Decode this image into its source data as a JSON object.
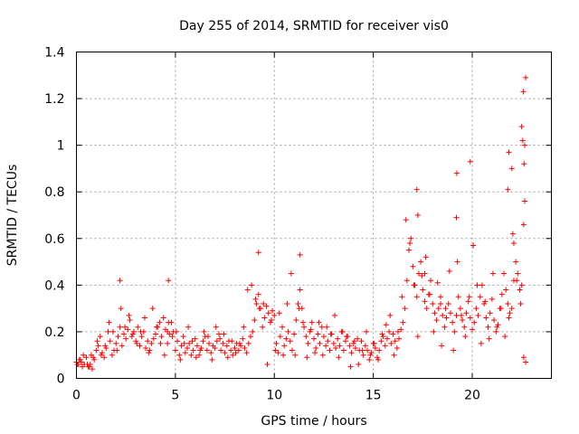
{
  "chart_data": {
    "type": "scatter",
    "title": "Day 255 of 2014, SRMTID for receiver vis0",
    "xlabel": "GPS time / hours",
    "ylabel": "SRMTID / TECUs",
    "xlim": [
      0,
      24
    ],
    "ylim": [
      0,
      1.4
    ],
    "grid": true,
    "marker": "+",
    "marker_color": "#ff0000",
    "x_ticks": [
      {
        "value": 0,
        "label": "0"
      },
      {
        "value": 5,
        "label": "5"
      },
      {
        "value": 10,
        "label": "10"
      },
      {
        "value": 15,
        "label": "15"
      },
      {
        "value": 20,
        "label": "20"
      }
    ],
    "y_ticks": [
      {
        "value": 0,
        "label": "0"
      },
      {
        "value": 0.2,
        "label": "0.2"
      },
      {
        "value": 0.4,
        "label": "0.4"
      },
      {
        "value": 0.6,
        "label": "0.6"
      },
      {
        "value": 0.8,
        "label": "0.8"
      },
      {
        "value": 1.0,
        "label": "1"
      },
      {
        "value": 1.2,
        "label": "1.2"
      },
      {
        "value": 1.4,
        "label": "1.4"
      }
    ],
    "series": [
      {
        "name": "SRMTID",
        "x": [
          0.0,
          0.1,
          0.2,
          0.3,
          0.4,
          0.5,
          0.6,
          0.7,
          0.8,
          0.9,
          1.0,
          1.1,
          1.2,
          1.3,
          1.4,
          1.5,
          1.6,
          1.7,
          1.8,
          1.9,
          2.0,
          2.1,
          2.2,
          2.3,
          2.4,
          2.5,
          2.6,
          2.7,
          2.8,
          2.9,
          3.0,
          3.1,
          3.2,
          3.3,
          3.4,
          3.5,
          3.6,
          3.7,
          3.8,
          3.9,
          4.0,
          4.1,
          4.2,
          4.3,
          4.4,
          4.5,
          4.6,
          4.7,
          4.8,
          4.9,
          5.0,
          5.1,
          5.2,
          5.3,
          5.4,
          5.5,
          5.6,
          5.7,
          5.8,
          5.9,
          6.0,
          6.1,
          6.2,
          6.3,
          6.4,
          6.5,
          6.6,
          6.7,
          6.8,
          6.9,
          7.0,
          7.1,
          7.2,
          7.3,
          7.4,
          7.5,
          7.6,
          7.7,
          7.8,
          7.9,
          8.0,
          8.1,
          8.2,
          8.3,
          8.4,
          8.5,
          8.6,
          8.7,
          8.8,
          8.9,
          9.0,
          9.1,
          9.2,
          9.3,
          9.4,
          9.5,
          9.6,
          9.7,
          9.8,
          9.9,
          10.0,
          10.1,
          10.2,
          10.3,
          10.4,
          10.5,
          10.6,
          10.7,
          10.8,
          10.9,
          11.0,
          11.1,
          11.2,
          11.3,
          11.4,
          11.5,
          11.6,
          11.7,
          11.8,
          11.9,
          12.0,
          12.1,
          12.2,
          12.3,
          12.4,
          12.5,
          12.6,
          12.7,
          12.8,
          12.9,
          13.0,
          13.1,
          13.2,
          13.3,
          13.4,
          13.5,
          13.6,
          13.7,
          13.8,
          13.9,
          14.0,
          14.1,
          14.2,
          14.3,
          14.4,
          14.5,
          14.6,
          14.7,
          14.8,
          14.9,
          15.0,
          15.1,
          15.2,
          15.3,
          15.4,
          15.5,
          15.6,
          15.7,
          15.8,
          15.9,
          16.0,
          16.1,
          16.2,
          16.3,
          16.4,
          16.5,
          16.6,
          16.7,
          16.8,
          16.9,
          17.0,
          17.1,
          17.2,
          17.3,
          17.4,
          17.5,
          17.6,
          17.7,
          17.8,
          17.9,
          18.0,
          18.1,
          18.2,
          18.3,
          18.4,
          18.5,
          18.6,
          18.7,
          18.8,
          18.9,
          19.0,
          19.1,
          19.2,
          19.3,
          19.4,
          19.5,
          19.6,
          19.7,
          19.8,
          19.9,
          20.0,
          20.1,
          20.2,
          20.3,
          20.4,
          20.5,
          20.6,
          20.7,
          20.8,
          20.9,
          21.0,
          21.1,
          21.2,
          21.3,
          21.4,
          21.5,
          21.6,
          21.7,
          21.8,
          21.9,
          22.0,
          22.1,
          22.2,
          22.3,
          22.4,
          22.5,
          22.6,
          22.7,
          0.05,
          0.15,
          0.25,
          0.35,
          0.55,
          0.65,
          0.75,
          0.85,
          1.05,
          1.25,
          1.45,
          1.65,
          1.85,
          2.05,
          2.25,
          2.45,
          2.65,
          2.85,
          3.05,
          3.25,
          3.45,
          3.65,
          3.85,
          4.05,
          4.25,
          4.45,
          4.65,
          4.85,
          5.05,
          5.25,
          5.45,
          5.65,
          5.85,
          6.05,
          6.25,
          6.45,
          6.65,
          6.85,
          7.05,
          7.25,
          7.45,
          7.65,
          7.85,
          8.05,
          8.25,
          8.45,
          8.65,
          8.85,
          9.05,
          9.25,
          9.45,
          9.65,
          9.85,
          10.05,
          10.25,
          10.45,
          10.65,
          10.85,
          11.05,
          11.25,
          11.45,
          11.65,
          11.85,
          12.05,
          12.25,
          12.45,
          12.65,
          12.85,
          13.05,
          13.25,
          13.45,
          13.65,
          13.85,
          14.05,
          14.25,
          14.45,
          14.65,
          14.85,
          15.05,
          15.25,
          15.45,
          15.65,
          15.85,
          16.05,
          16.25,
          16.45,
          16.65,
          16.85,
          17.05,
          17.25,
          17.45,
          17.65,
          17.85,
          18.05,
          18.25,
          18.45,
          18.65,
          18.85,
          19.05,
          19.25,
          19.45,
          19.65,
          19.85,
          20.05,
          20.25,
          20.45,
          20.65,
          20.85,
          21.05,
          21.25,
          21.45,
          21.65,
          21.85,
          22.05,
          22.25,
          22.45,
          22.65,
          2.2,
          4.6,
          4.65,
          9.2,
          11.3,
          17.2,
          17.25,
          19.2,
          19.22,
          21.8,
          21.85,
          22.0,
          22.1,
          22.5,
          22.55,
          22.6,
          22.62,
          22.65,
          22.7,
          22.58,
          19.9,
          17.6,
          18.4
        ],
        "y": [
          0.07,
          0.06,
          0.08,
          0.05,
          0.06,
          0.09,
          0.05,
          0.06,
          0.04,
          0.08,
          0.12,
          0.14,
          0.18,
          0.11,
          0.09,
          0.13,
          0.2,
          0.16,
          0.1,
          0.12,
          0.15,
          0.18,
          0.22,
          0.14,
          0.19,
          0.17,
          0.21,
          0.25,
          0.18,
          0.2,
          0.16,
          0.22,
          0.14,
          0.18,
          0.2,
          0.13,
          0.16,
          0.12,
          0.15,
          0.17,
          0.19,
          0.22,
          0.24,
          0.18,
          0.26,
          0.21,
          0.15,
          0.19,
          0.24,
          0.2,
          0.12,
          0.16,
          0.1,
          0.14,
          0.18,
          0.11,
          0.13,
          0.15,
          0.1,
          0.12,
          0.17,
          0.14,
          0.1,
          0.13,
          0.16,
          0.18,
          0.12,
          0.15,
          0.11,
          0.14,
          0.13,
          0.16,
          0.19,
          0.12,
          0.15,
          0.11,
          0.14,
          0.16,
          0.12,
          0.1,
          0.13,
          0.15,
          0.12,
          0.14,
          0.17,
          0.13,
          0.11,
          0.15,
          0.18,
          0.2,
          0.25,
          0.32,
          0.36,
          0.3,
          0.22,
          0.26,
          0.31,
          0.28,
          0.24,
          0.29,
          0.27,
          0.15,
          0.11,
          0.18,
          0.22,
          0.14,
          0.17,
          0.2,
          0.16,
          0.12,
          0.19,
          0.25,
          0.32,
          0.38,
          0.3,
          0.22,
          0.18,
          0.15,
          0.2,
          0.24,
          0.17,
          0.13,
          0.19,
          0.15,
          0.22,
          0.18,
          0.14,
          0.16,
          0.12,
          0.19,
          0.15,
          0.13,
          0.17,
          0.14,
          0.2,
          0.12,
          0.16,
          0.18,
          0.14,
          0.11,
          0.15,
          0.13,
          0.17,
          0.12,
          0.16,
          0.1,
          0.14,
          0.12,
          0.08,
          0.11,
          0.15,
          0.13,
          0.09,
          0.12,
          0.16,
          0.18,
          0.14,
          0.17,
          0.2,
          0.15,
          0.19,
          0.16,
          0.13,
          0.17,
          0.21,
          0.24,
          0.3,
          0.42,
          0.55,
          0.6,
          0.48,
          0.4,
          0.35,
          0.45,
          0.5,
          0.38,
          0.33,
          0.3,
          0.36,
          0.42,
          0.32,
          0.28,
          0.25,
          0.3,
          0.35,
          0.27,
          0.22,
          0.26,
          0.32,
          0.28,
          0.24,
          0.2,
          0.27,
          0.35,
          0.3,
          0.25,
          0.22,
          0.28,
          0.33,
          0.26,
          0.21,
          0.24,
          0.3,
          0.27,
          0.35,
          0.4,
          0.32,
          0.26,
          0.22,
          0.28,
          0.34,
          0.25,
          0.2,
          0.23,
          0.3,
          0.36,
          0.45,
          0.38,
          0.32,
          0.28,
          0.3,
          0.42,
          0.5,
          0.45,
          0.38,
          0.4,
          0.09,
          0.07,
          0.06,
          0.08,
          0.07,
          0.1,
          0.06,
          0.05,
          0.1,
          0.09,
          0.16,
          0.1,
          0.14,
          0.24,
          0.2,
          0.12,
          0.3,
          0.22,
          0.27,
          0.19,
          0.15,
          0.2,
          0.26,
          0.11,
          0.3,
          0.22,
          0.15,
          0.1,
          0.24,
          0.18,
          0.2,
          0.08,
          0.15,
          0.22,
          0.16,
          0.09,
          0.12,
          0.2,
          0.18,
          0.08,
          0.22,
          0.17,
          0.19,
          0.09,
          0.16,
          0.11,
          0.15,
          0.22,
          0.38,
          0.4,
          0.34,
          0.3,
          0.32,
          0.06,
          0.25,
          0.12,
          0.28,
          0.1,
          0.32,
          0.45,
          0.1,
          0.3,
          0.24,
          0.09,
          0.21,
          0.11,
          0.24,
          0.1,
          0.22,
          0.19,
          0.27,
          0.09,
          0.2,
          0.18,
          0.05,
          0.16,
          0.06,
          0.12,
          0.2,
          0.1,
          0.15,
          0.08,
          0.19,
          0.23,
          0.27,
          0.1,
          0.2,
          0.35,
          0.68,
          0.58,
          0.4,
          0.18,
          0.44,
          0.52,
          0.36,
          0.2,
          0.41,
          0.14,
          0.3,
          0.46,
          0.12,
          0.5,
          0.27,
          0.18,
          0.35,
          0.57,
          0.4,
          0.15,
          0.33,
          0.17,
          0.45,
          0.22,
          0.3,
          0.18,
          0.26,
          0.62,
          0.42,
          0.32,
          0.76,
          0.42,
          0.2,
          0.42,
          0.54,
          0.53,
          0.81,
          0.7,
          0.69,
          0.88,
          0.81,
          0.97,
          0.9,
          0.58,
          1.08,
          1.02,
          0.66,
          0.92,
          1.0,
          1.29,
          1.23,
          0.93,
          0.45,
          0.32
        ]
      }
    ]
  }
}
